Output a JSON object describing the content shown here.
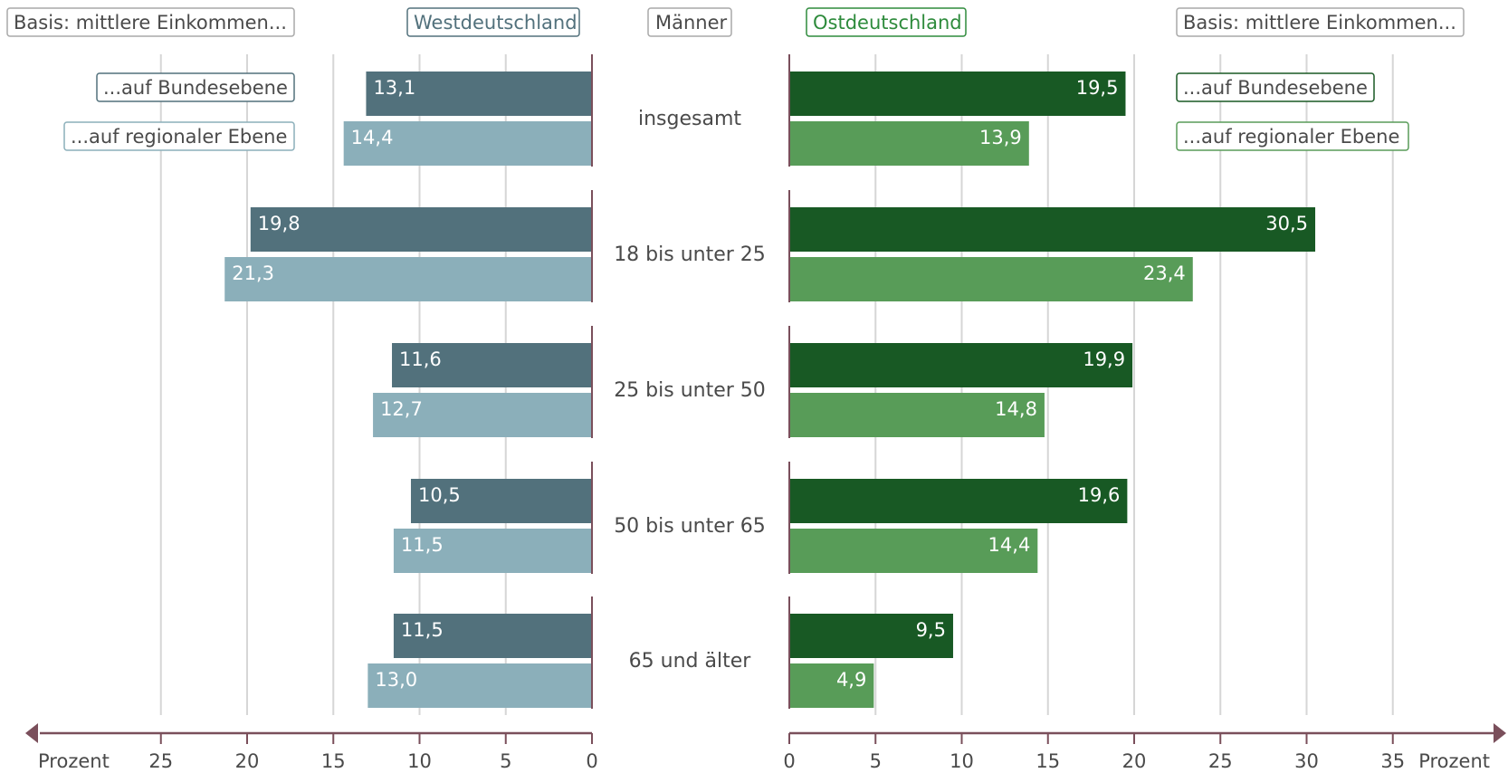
{
  "header": {
    "basis_left": "Basis: mittlere Einkommen...",
    "west_title": "Westdeutschland",
    "sex_label": "Männer",
    "east_title": "Ostdeutschland",
    "basis_right": "Basis: mittlere Einkommen..."
  },
  "legend": {
    "federal": "...auf Bundesebene",
    "regional": "...auf regionaler Ebene"
  },
  "colors": {
    "west_federal": "#52717c",
    "west_regional": "#8bafba",
    "east_federal": "#185924",
    "east_regional": "#589c58",
    "axis": "#7a4f5b",
    "grid": "#d6d6d6",
    "west_border": "#52717c",
    "east_border": "#2e8b3c",
    "neutral_border": "#a8a8a8"
  },
  "chart_data": {
    "type": "bar",
    "orientation": "horizontal-butterfly",
    "categories": [
      "insgesamt",
      "18 bis unter 25",
      "25 bis unter 50",
      "50 bis unter 65",
      "65 und älter"
    ],
    "panels": [
      {
        "name": "Westdeutschland",
        "direction": "left",
        "xlim": [
          0,
          30
        ],
        "ticks": [
          0,
          5,
          10,
          15,
          20,
          25
        ],
        "tick_labels": [
          "0",
          "5",
          "10",
          "15",
          "20",
          "25"
        ],
        "xlabel": "Prozent",
        "series": [
          {
            "name": "...auf Bundesebene",
            "values": [
              13.1,
              19.8,
              11.6,
              10.5,
              11.5
            ],
            "labels": [
              "13,1",
              "19,8",
              "11,6",
              "10,5",
              "11,5"
            ]
          },
          {
            "name": "...auf regionaler Ebene",
            "values": [
              14.4,
              21.3,
              12.7,
              11.5,
              13.0
            ],
            "labels": [
              "14,4",
              "21,3",
              "12,7",
              "11,5",
              "13,0"
            ]
          }
        ]
      },
      {
        "name": "Ostdeutschland",
        "direction": "right",
        "xlim": [
          0,
          40
        ],
        "ticks": [
          0,
          5,
          10,
          15,
          20,
          25,
          30,
          35
        ],
        "tick_labels": [
          "0",
          "5",
          "10",
          "15",
          "20",
          "25",
          "30",
          "35"
        ],
        "xlabel": "Prozent",
        "series": [
          {
            "name": "...auf Bundesebene",
            "values": [
              19.5,
              30.5,
              19.9,
              19.6,
              9.5
            ],
            "labels": [
              "19,5",
              "30,5",
              "19,9",
              "19,6",
              "9,5"
            ]
          },
          {
            "name": "...auf regionaler Ebene",
            "values": [
              13.9,
              23.4,
              14.8,
              14.4,
              4.9
            ],
            "labels": [
              "13,9",
              "23,4",
              "14,8",
              "14,4",
              "4,9"
            ]
          }
        ]
      }
    ],
    "grid": true
  }
}
